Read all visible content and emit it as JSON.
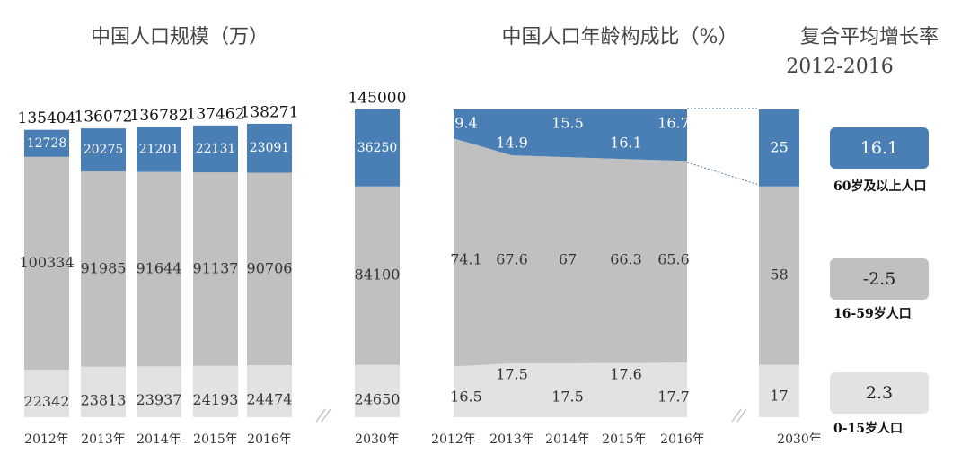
{
  "chart_data": [
    {
      "type": "bar",
      "stacked": true,
      "title": "中国人口规模（万）",
      "categories": [
        "2012年",
        "2013年",
        "2014年",
        "2015年",
        "2016年",
        "2030年"
      ],
      "series": [
        {
          "color": "#e3e2e2",
          "values": [
            22342,
            23813,
            23937,
            24193,
            24474,
            24650
          ]
        },
        {
          "color": "#c1c0c0",
          "values": [
            100334,
            91985,
            91644,
            91137,
            90706,
            84100
          ]
        },
        {
          "color": "#4a7fb5",
          "values": [
            12728,
            20275,
            21201,
            22131,
            23091,
            36250
          ]
        }
      ],
      "totals": [
        135404,
        136072,
        136782,
        137462,
        138271,
        145000
      ],
      "ylim": [
        0,
        145000
      ]
    },
    {
      "type": "area",
      "stacked": true,
      "title": "中国人口年龄构成比（%）",
      "categories": [
        "2012年",
        "2013年",
        "2014年",
        "2015年",
        "2016年",
        "2030年"
      ],
      "series": [
        {
          "color": "#e3e2e2",
          "values": [
            16.5,
            17.5,
            17.5,
            17.6,
            17.7,
            17
          ]
        },
        {
          "color": "#c1c0c0",
          "values": [
            74.1,
            67.6,
            67,
            66.3,
            65.6,
            58
          ]
        },
        {
          "color": "#4a7fb5",
          "values": [
            9.4,
            14.9,
            15.5,
            16.1,
            16.7,
            25
          ]
        }
      ],
      "ylim": [
        0,
        100
      ]
    }
  ],
  "growth": {
    "title": "复合平均增长率",
    "subtitle": "2012-2016",
    "items": [
      {
        "name": "60岁及以上人口",
        "value": 16.1,
        "color": "#4a7fb5"
      },
      {
        "name": "16-59岁人口",
        "value": -2.5,
        "color": "#c1c0c0"
      },
      {
        "name": "0-15岁人口",
        "value": 2.3,
        "color": "#e3e2e2"
      }
    ]
  }
}
